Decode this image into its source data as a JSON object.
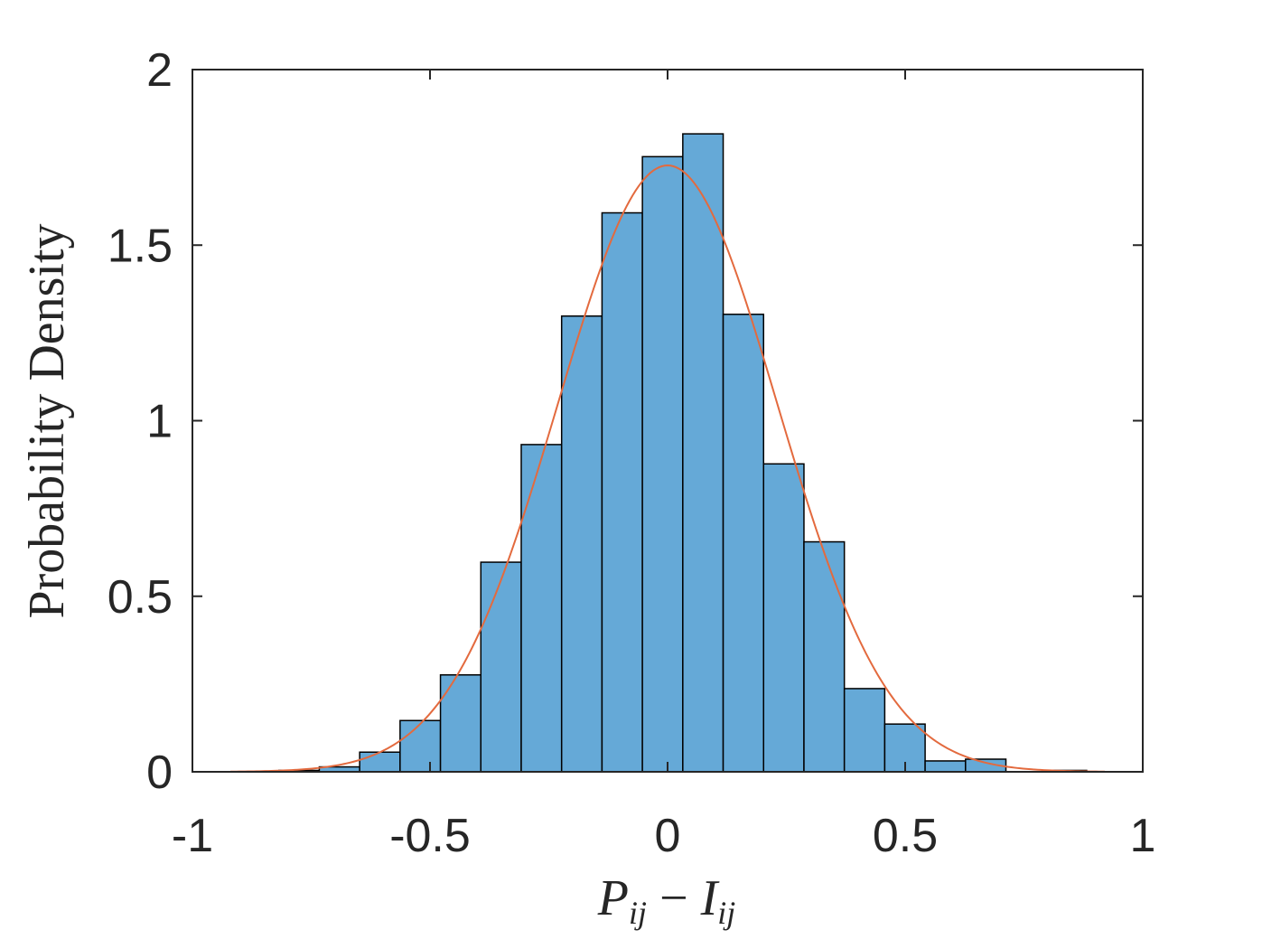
{
  "chart_data": {
    "type": "bar",
    "subtype": "histogram-with-fitted-normal-curve",
    "title": "",
    "xlabel": {
      "main_p": "P",
      "sub_p": "ij",
      "minus": "−",
      "main_i": "I",
      "sub_i": "ij"
    },
    "ylabel": "Probability Density",
    "xlim": [
      -1,
      1
    ],
    "ylim": [
      0,
      2
    ],
    "xticks": [
      -1,
      -0.5,
      0,
      0.5,
      1
    ],
    "xtick_labels": [
      "-1",
      "-0.5",
      "0",
      "0.5",
      "1"
    ],
    "yticks": [
      0,
      0.5,
      1,
      1.5,
      2
    ],
    "ytick_labels": [
      "0",
      "0.5",
      "1",
      "1.5",
      "2"
    ],
    "bin_edges": [
      -0.818,
      -0.733,
      -0.648,
      -0.563,
      -0.478,
      -0.393,
      -0.308,
      -0.223,
      -0.138,
      -0.053,
      0.032,
      0.117,
      0.202,
      0.287,
      0.372,
      0.457,
      0.542,
      0.627,
      0.712,
      0.797,
      0.882
    ],
    "bin_densities": [
      0.004,
      0.014,
      0.056,
      0.146,
      0.276,
      0.597,
      0.932,
      1.298,
      1.592,
      1.752,
      1.817,
      1.303,
      0.877,
      0.655,
      0.237,
      0.136,
      0.031,
      0.036,
      0.0,
      0.004
    ],
    "fit_curve": {
      "distribution": "normal",
      "mean": 0.0,
      "std": 0.231,
      "x_range": [
        -0.92,
        0.92
      ]
    },
    "grid": false,
    "legend": "none",
    "colors": {
      "bar_fill": "#65A9D7",
      "bar_edge": "#000000",
      "curve": "#E36A3E",
      "axis": "#262626"
    }
  }
}
